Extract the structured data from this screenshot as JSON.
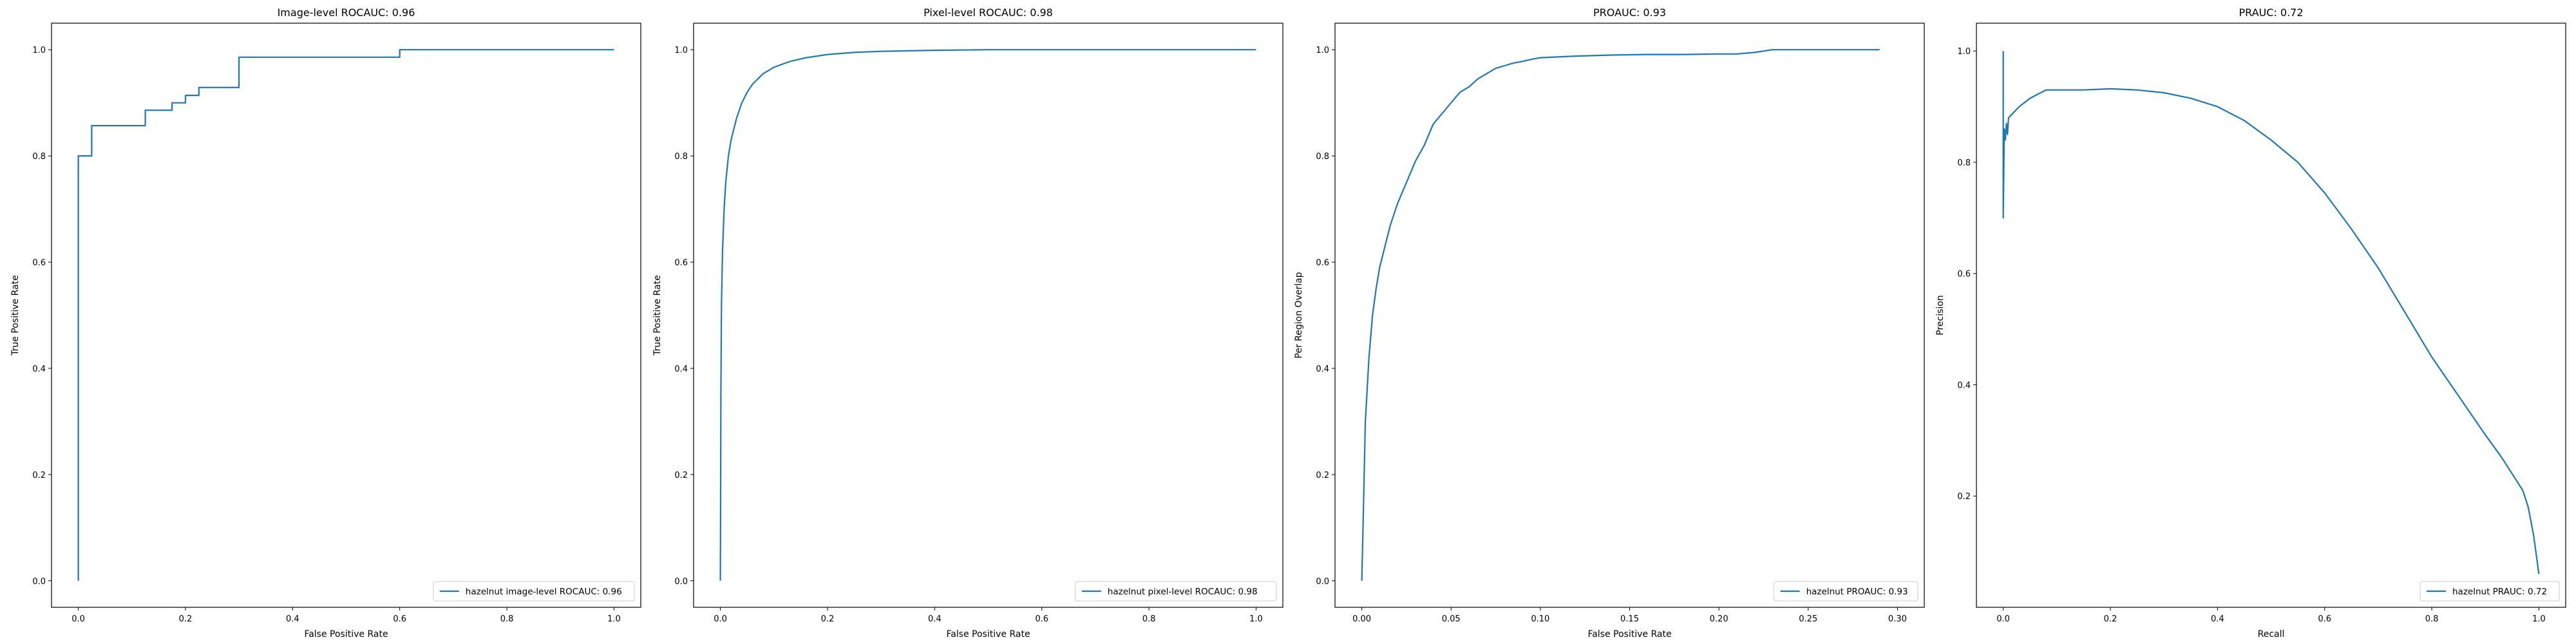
{
  "chart_data": [
    {
      "type": "line",
      "title": "Image-level ROCAUC: 0.96",
      "xlabel": "False Positive Rate",
      "ylabel": "True Positive Rate",
      "xlim": [
        -0.05,
        1.05
      ],
      "ylim": [
        -0.05,
        1.05
      ],
      "xticks": [
        0.0,
        0.2,
        0.4,
        0.6,
        0.8,
        1.0
      ],
      "xtick_labels": [
        "0.0",
        "0.2",
        "0.4",
        "0.6",
        "0.8",
        "1.0"
      ],
      "yticks": [
        0.0,
        0.2,
        0.4,
        0.6,
        0.8,
        1.0
      ],
      "ytick_labels": [
        "0.0",
        "0.2",
        "0.4",
        "0.6",
        "0.8",
        "1.0"
      ],
      "grid": false,
      "legend_position": "lower right",
      "series": [
        {
          "name": "hazelnut image-level ROCAUC: 0.96",
          "color": "#1f77b4",
          "x": [
            0.0,
            0.0,
            0.0,
            0.025,
            0.025,
            0.125,
            0.125,
            0.175,
            0.175,
            0.2,
            0.2,
            0.225,
            0.225,
            0.3,
            0.3,
            0.6,
            0.6,
            1.0
          ],
          "y": [
            0.0,
            0.8,
            0.8,
            0.8,
            0.857,
            0.857,
            0.886,
            0.886,
            0.9,
            0.9,
            0.914,
            0.914,
            0.929,
            0.929,
            0.986,
            0.986,
            1.0,
            1.0
          ]
        }
      ]
    },
    {
      "type": "line",
      "title": "Pixel-level ROCAUC: 0.98",
      "xlabel": "False Positive Rate",
      "ylabel": "True Positive Rate",
      "xlim": [
        -0.05,
        1.05
      ],
      "ylim": [
        -0.05,
        1.05
      ],
      "xticks": [
        0.0,
        0.2,
        0.4,
        0.6,
        0.8,
        1.0
      ],
      "xtick_labels": [
        "0.0",
        "0.2",
        "0.4",
        "0.6",
        "0.8",
        "1.0"
      ],
      "yticks": [
        0.0,
        0.2,
        0.4,
        0.6,
        0.8,
        1.0
      ],
      "ytick_labels": [
        "0.0",
        "0.2",
        "0.4",
        "0.6",
        "0.8",
        "1.0"
      ],
      "grid": false,
      "legend_position": "lower right",
      "series": [
        {
          "name": "hazelnut pixel-level ROCAUC: 0.98",
          "color": "#1f77b4",
          "x": [
            0.0,
            0.001,
            0.002,
            0.004,
            0.007,
            0.01,
            0.015,
            0.02,
            0.03,
            0.04,
            0.05,
            0.06,
            0.08,
            0.1,
            0.13,
            0.16,
            0.2,
            0.25,
            0.3,
            0.4,
            0.5,
            0.7,
            1.0
          ],
          "y": [
            0.0,
            0.35,
            0.52,
            0.62,
            0.7,
            0.75,
            0.8,
            0.83,
            0.87,
            0.9,
            0.92,
            0.935,
            0.955,
            0.967,
            0.978,
            0.985,
            0.991,
            0.995,
            0.997,
            0.999,
            1.0,
            1.0,
            1.0
          ]
        }
      ]
    },
    {
      "type": "line",
      "title": "PROAUC: 0.93",
      "xlabel": "False Positive Rate",
      "ylabel": "Per Region Overlap",
      "xlim": [
        -0.015,
        0.315
      ],
      "ylim": [
        -0.05,
        1.05
      ],
      "xticks": [
        0.0,
        0.05,
        0.1,
        0.15,
        0.2,
        0.25,
        0.3
      ],
      "xtick_labels": [
        "0.00",
        "0.05",
        "0.10",
        "0.15",
        "0.20",
        "0.25",
        "0.30"
      ],
      "yticks": [
        0.0,
        0.2,
        0.4,
        0.6,
        0.8,
        1.0
      ],
      "ytick_labels": [
        "0.0",
        "0.2",
        "0.4",
        "0.6",
        "0.8",
        "1.0"
      ],
      "grid": false,
      "legend_position": "lower right",
      "series": [
        {
          "name": "hazelnut PROAUC: 0.93",
          "color": "#1f77b4",
          "x": [
            0.0,
            0.001,
            0.002,
            0.004,
            0.006,
            0.008,
            0.01,
            0.013,
            0.016,
            0.02,
            0.025,
            0.03,
            0.035,
            0.04,
            0.045,
            0.05,
            0.055,
            0.06,
            0.065,
            0.07,
            0.075,
            0.08,
            0.085,
            0.09,
            0.095,
            0.1,
            0.12,
            0.14,
            0.16,
            0.18,
            0.2,
            0.21,
            0.22,
            0.23,
            0.25,
            0.27,
            0.29
          ],
          "y": [
            0.0,
            0.15,
            0.3,
            0.42,
            0.5,
            0.55,
            0.59,
            0.63,
            0.67,
            0.71,
            0.75,
            0.79,
            0.82,
            0.86,
            0.88,
            0.9,
            0.92,
            0.93,
            0.945,
            0.955,
            0.965,
            0.97,
            0.975,
            0.978,
            0.982,
            0.985,
            0.988,
            0.99,
            0.991,
            0.991,
            0.992,
            0.992,
            0.995,
            1.0,
            1.0,
            1.0,
            1.0
          ]
        }
      ]
    },
    {
      "type": "line",
      "title": "PRAUC: 0.72",
      "xlabel": "Recall",
      "ylabel": "Precision",
      "xlim": [
        -0.05,
        1.05
      ],
      "ylim": [
        0.0,
        1.05
      ],
      "xticks": [
        0.0,
        0.2,
        0.4,
        0.6,
        0.8,
        1.0
      ],
      "xtick_labels": [
        "0.0",
        "0.2",
        "0.4",
        "0.6",
        "0.8",
        "1.0"
      ],
      "yticks": [
        0.2,
        0.4,
        0.6,
        0.8,
        1.0
      ],
      "ytick_labels": [
        "0.2",
        "0.4",
        "0.6",
        "0.8",
        "1.0"
      ],
      "grid": false,
      "legend_position": "lower right",
      "series": [
        {
          "name": "hazelnut PRAUC: 0.72",
          "color": "#1f77b4",
          "x": [
            0.0,
            0.0,
            0.002,
            0.004,
            0.006,
            0.008,
            0.01,
            0.02,
            0.03,
            0.05,
            0.08,
            0.1,
            0.15,
            0.2,
            0.25,
            0.3,
            0.35,
            0.4,
            0.45,
            0.5,
            0.55,
            0.6,
            0.65,
            0.7,
            0.75,
            0.8,
            0.85,
            0.9,
            0.93,
            0.95,
            0.97,
            0.98,
            0.99,
            1.0
          ],
          "y": [
            1.0,
            0.7,
            0.86,
            0.84,
            0.87,
            0.85,
            0.88,
            0.89,
            0.9,
            0.915,
            0.93,
            0.93,
            0.93,
            0.932,
            0.93,
            0.925,
            0.915,
            0.9,
            0.875,
            0.84,
            0.8,
            0.745,
            0.68,
            0.61,
            0.53,
            0.45,
            0.38,
            0.31,
            0.27,
            0.24,
            0.21,
            0.18,
            0.13,
            0.06
          ]
        }
      ]
    }
  ]
}
